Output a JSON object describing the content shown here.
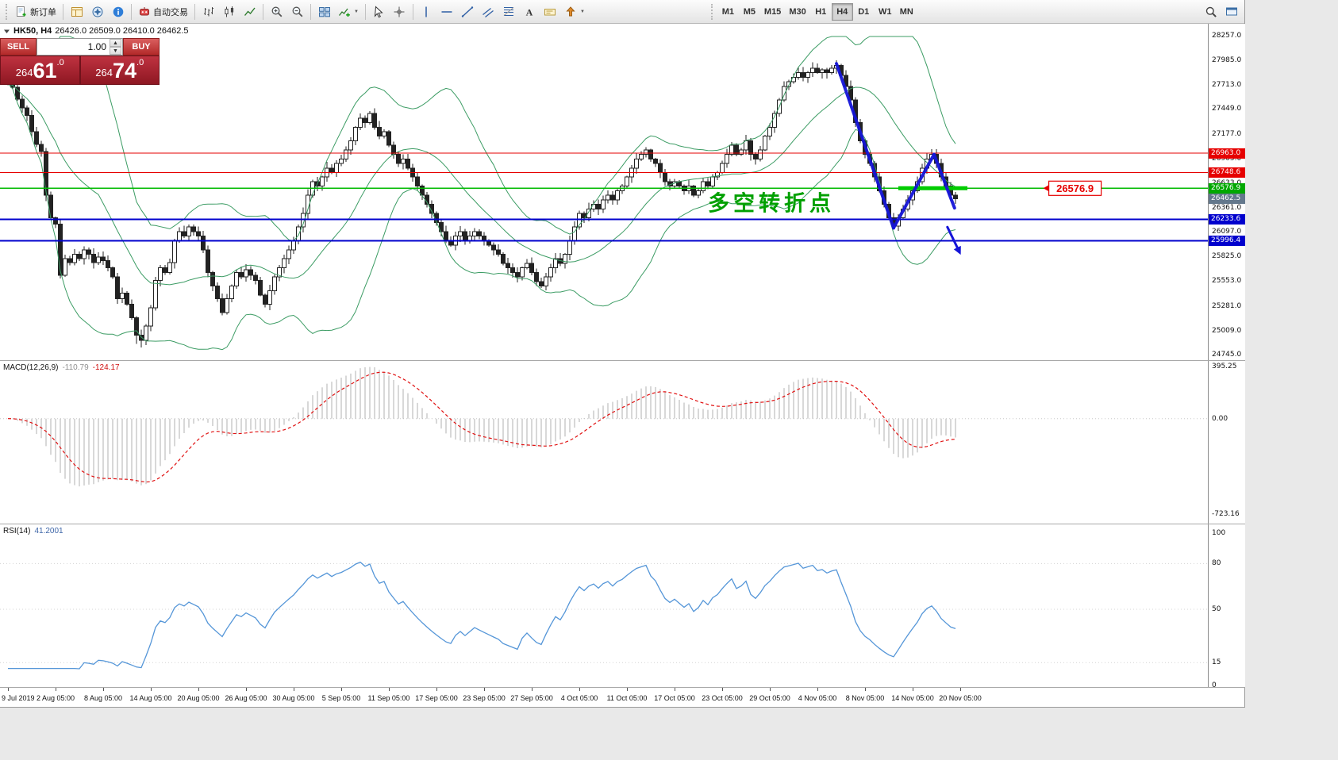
{
  "toolbar": {
    "new_order_label": "新订单",
    "autotrading_label": "自动交易",
    "timeframes": [
      "M1",
      "M5",
      "M15",
      "M30",
      "H1",
      "H4",
      "D1",
      "W1",
      "MN"
    ],
    "active_timeframe": "H4"
  },
  "chart": {
    "title_symbol": "HK50, H4",
    "title_ohlc": "26426.0 26509.0 26410.0 26462.5"
  },
  "trade_panel": {
    "sell_label": "SELL",
    "buy_label": "BUY",
    "volume": "1.00",
    "sell_price": {
      "prefix": "264",
      "large": "61",
      "suffix": ".0"
    },
    "buy_price": {
      "prefix": "264",
      "large": "74",
      "suffix": ".0"
    }
  },
  "price_scale": {
    "labels": [
      "28257.0",
      "27985.0",
      "27713.0",
      "27449.0",
      "27177.0",
      "26905.0",
      "26633.0",
      "26361.0",
      "26097.0",
      "25825.0",
      "25553.0",
      "25281.0",
      "25009.0",
      "24745.0"
    ],
    "tags": [
      {
        "text": "26963.0",
        "color": "#e60000"
      },
      {
        "text": "26748.6",
        "color": "#e60000"
      },
      {
        "text": "26576.9",
        "color": "#00a800"
      },
      {
        "text": "26462.5",
        "color": "#64788c"
      },
      {
        "text": "26233.6",
        "color": "#0000cd"
      },
      {
        "text": "25996.4",
        "color": "#0000cd"
      }
    ]
  },
  "hlines": [
    {
      "price": 26963.0,
      "color": "#e60000",
      "width": 1
    },
    {
      "price": 26748.6,
      "color": "#e60000",
      "width": 1
    },
    {
      "price": 26576.9,
      "color": "#00bb00",
      "width": 1.5
    },
    {
      "price": 26233.6,
      "color": "#0000cd",
      "width": 2
    },
    {
      "price": 25996.4,
      "color": "#0000cd",
      "width": 2
    }
  ],
  "annotations": {
    "turning_point": {
      "text": "多空转折点",
      "color": "#00a000",
      "index": 147,
      "price": 26330,
      "size": 27
    },
    "callout": {
      "text": "26576.9",
      "color": "#e60000",
      "index": 218.6,
      "price": 26576.9
    },
    "highlight_segment": {
      "from_index": 187,
      "to_index": 201.5,
      "price": 26576.9,
      "color": "#00cc00",
      "width": 5
    },
    "trend_lines": {
      "color": "#1515d8",
      "width": 4,
      "segments": [
        [
          174,
          27950,
          186,
          26140
        ],
        [
          186,
          26140,
          194.5,
          26950
        ],
        [
          194.5,
          26950,
          198.8,
          26360
        ]
      ]
    },
    "arrow": {
      "color": "#1515d8",
      "from": [
        197.3,
        26150
      ],
      "to": [
        199.6,
        25900
      ]
    }
  },
  "indicators": {
    "macd": {
      "name": "MACD(12,26,9)",
      "main_value": "-110.79",
      "signal_value": "-124.17",
      "scale_labels": [
        "395.25",
        "0.00",
        "-723.16"
      ],
      "histogram_color": "#b2b2b2",
      "signal_color": "#e01010"
    },
    "rsi": {
      "name": "RSI(14)",
      "value": "41.2001",
      "scale_labels": [
        "100",
        "80",
        "50",
        "15",
        "0"
      ],
      "line_color": "#5596d8",
      "levels": [
        80,
        50,
        15
      ]
    }
  },
  "time_axis": {
    "labels": [
      "9 Jul 2019",
      "2 Aug 05:00",
      "8 Aug 05:00",
      "14 Aug 05:00",
      "20 Aug 05:00",
      "26 Aug 05:00",
      "30 Aug 05:00",
      "5 Sep 05:00",
      "11 Sep 05:00",
      "17 Sep 05:00",
      "23 Sep 05:00",
      "27 Sep 05:00",
      "4 Oct 05:00",
      "11 Oct 05:00",
      "17 Oct 05:00",
      "23 Oct 05:00",
      "29 Oct 05:00",
      "4 Nov 05:00",
      "8 Nov 05:00",
      "14 Nov 05:00",
      "20 Nov 05:00"
    ]
  },
  "chart_data": {
    "type": "candlestick",
    "symbol": "HK50",
    "timeframe": "H4",
    "ohlc_display": "26426.0 26509.0 26410.0 26462.5",
    "y_axis": {
      "top_label": 28257.0,
      "bottom_label": 24745.0
    },
    "overlays": [
      {
        "type": "bollinger",
        "period": 20,
        "deviation": 2,
        "color": "#3c9c64"
      }
    ],
    "closes": [
      27730,
      27690,
      27560,
      27460,
      27380,
      27200,
      27060,
      26980,
      26500,
      26250,
      26180,
      25620,
      25800,
      25760,
      25850,
      25800,
      25900,
      25850,
      25760,
      25820,
      25780,
      25700,
      25600,
      25360,
      25420,
      25300,
      25150,
      24960,
      24900,
      25060,
      25260,
      25560,
      25700,
      25650,
      25760,
      26000,
      26100,
      26050,
      26150,
      26100,
      26050,
      25900,
      25650,
      25500,
      25360,
      25210,
      25360,
      25500,
      25650,
      25600,
      25680,
      25620,
      25560,
      25400,
      25300,
      25450,
      25600,
      25700,
      25800,
      25900,
      26000,
      26150,
      26300,
      26500,
      26650,
      26600,
      26700,
      26800,
      26750,
      26850,
      26900,
      27000,
      27100,
      27250,
      27350,
      27300,
      27400,
      27250,
      27150,
      27200,
      27050,
      26950,
      26850,
      26900,
      26800,
      26700,
      26600,
      26500,
      26400,
      26300,
      26200,
      26100,
      26000,
      25950,
      26050,
      26100,
      26000,
      26050,
      26100,
      26050,
      26000,
      25950,
      25900,
      25850,
      25750,
      25700,
      25650,
      25600,
      25700,
      25750,
      25650,
      25550,
      25500,
      25600,
      25700,
      25800,
      25750,
      25850,
      26000,
      26150,
      26300,
      26250,
      26350,
      26400,
      26350,
      26450,
      26500,
      26450,
      26550,
      26600,
      26700,
      26800,
      26900,
      26950,
      27000,
      26900,
      26850,
      26750,
      26650,
      26600,
      26650,
      26600,
      26550,
      26600,
      26500,
      26550,
      26650,
      26600,
      26700,
      26750,
      26850,
      26950,
      27050,
      26950,
      27000,
      27100,
      26950,
      26900,
      27000,
      27150,
      27250,
      27400,
      27550,
      27700,
      27750,
      27800,
      27850,
      27800,
      27850,
      27900,
      27850,
      27880,
      27850,
      27900,
      27930,
      27820,
      27700,
      27550,
      27300,
      27100,
      26950,
      26850,
      26700,
      26550,
      26400,
      26250,
      26160,
      26250,
      26350,
      26450,
      26550,
      26650,
      26800,
      26900,
      26950,
      26850,
      26700,
      26600,
      26500,
      26462.5
    ]
  }
}
